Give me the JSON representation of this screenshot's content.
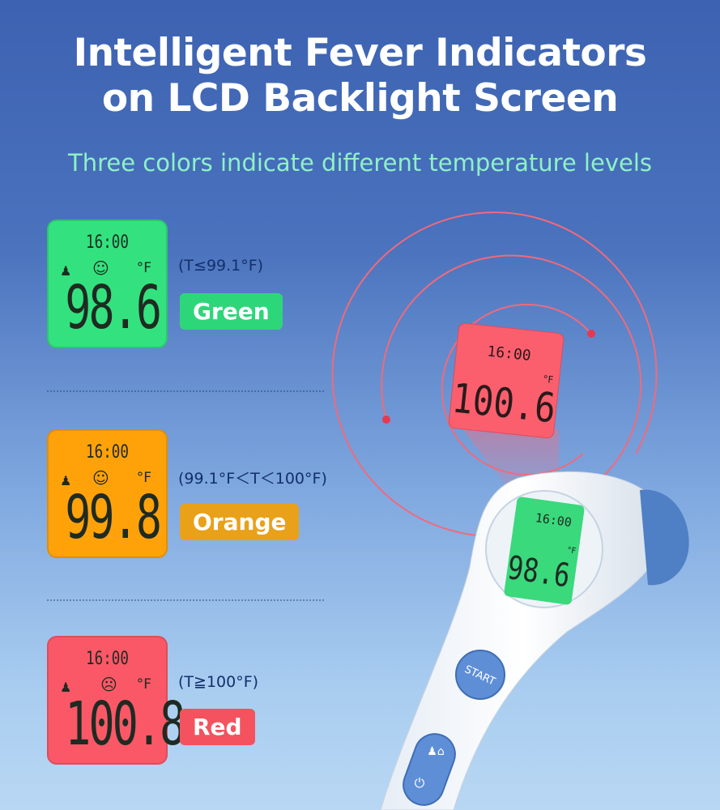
{
  "title_line1": "Intelligent Fever Indicators",
  "title_line2": "on LCD Backlight Screen",
  "subtitle": "Three colors indicate different temperature levels",
  "levels": [
    {
      "time": "16:00",
      "unit": "°F",
      "reading": "98.6",
      "face": "☺",
      "range": "(T≤99.1°F)",
      "label": "Green",
      "panel_color": "#33e27e",
      "badge_color": "#2ed67a"
    },
    {
      "time": "16:00",
      "unit": "°F",
      "reading": "99.8",
      "face": "☺",
      "range": "(99.1°F＜T＜100°F)",
      "label": "Orange",
      "panel_color": "#ffa20a",
      "badge_color": "#e9a11a"
    },
    {
      "time": "16:00",
      "unit": "°F",
      "reading": "100.8",
      "face": "☹",
      "range": "(T≧100°F)",
      "label": "Red",
      "panel_color": "#fb5867",
      "badge_color": "#f4525f"
    }
  ],
  "device": {
    "projected_time": "16:00",
    "projected_reading": "100.6",
    "projected_unit": "°F",
    "screen_time": "16:00",
    "screen_reading": "98.6",
    "screen_unit": "°F",
    "start_label": "START",
    "icons": [
      "person-house-mode-icon",
      "power-icon"
    ]
  }
}
